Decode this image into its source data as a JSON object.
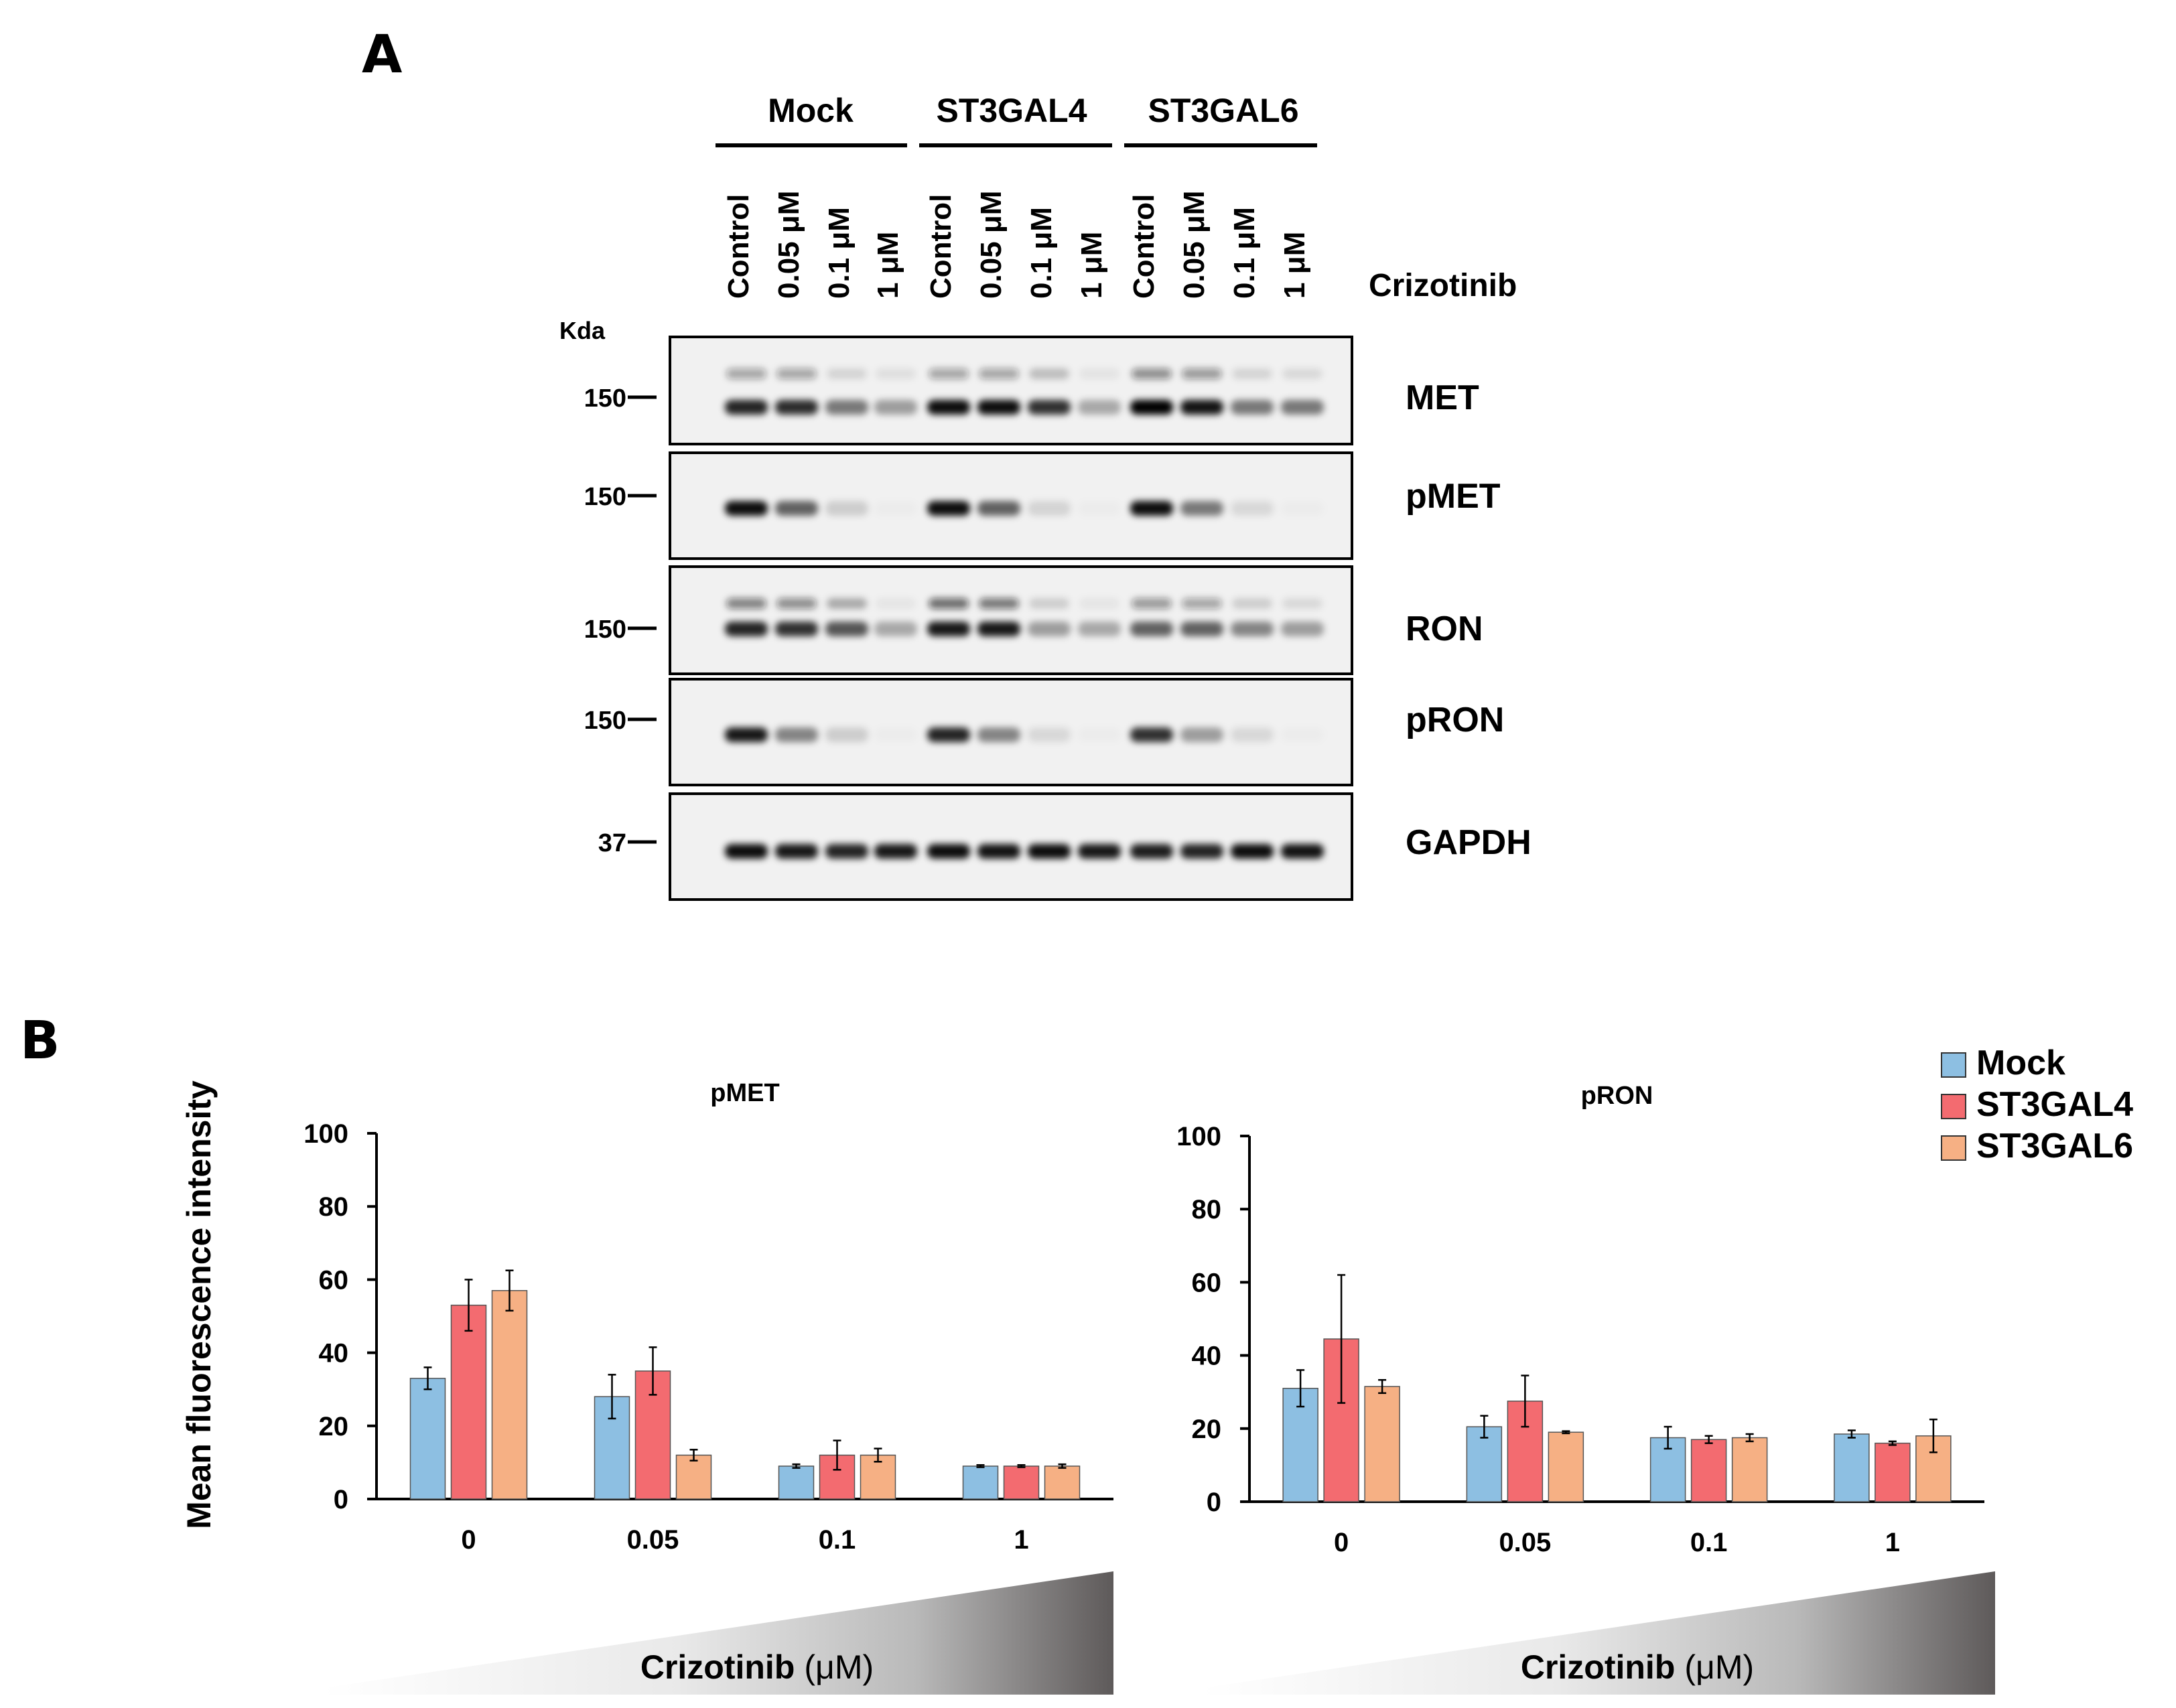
{
  "panel_a": {
    "letter": "A",
    "groups": [
      "Mock",
      "ST3GAL4",
      "ST3GAL6"
    ],
    "lanes": [
      "Control",
      "0.05 μM",
      "0.1 μM",
      "1 μM",
      "Control",
      "0.05 μM",
      "0.1 μM",
      "1 μM",
      "Control",
      "0.05 μM",
      "0.1 μM",
      "1 μM"
    ],
    "treatment_label": "Crizotinib",
    "kda_label": "Kda",
    "blots": [
      {
        "name": "MET",
        "marker": "150",
        "upper_band": [
          0.35,
          0.35,
          0.12,
          0.08,
          0.35,
          0.35,
          0.22,
          0.06,
          0.45,
          0.4,
          0.12,
          0.1
        ],
        "lower_band": [
          0.85,
          0.82,
          0.5,
          0.35,
          0.95,
          0.95,
          0.8,
          0.3,
          1.0,
          0.92,
          0.5,
          0.5
        ]
      },
      {
        "name": "pMET",
        "marker": "150",
        "upper_band": [
          0,
          0,
          0,
          0,
          0,
          0,
          0,
          0,
          0,
          0,
          0,
          0
        ],
        "lower_band": [
          0.95,
          0.6,
          0.15,
          0.02,
          0.95,
          0.6,
          0.12,
          0.02,
          0.95,
          0.5,
          0.1,
          0.02
        ]
      },
      {
        "name": "RON",
        "marker": "150",
        "upper_band": [
          0.5,
          0.45,
          0.3,
          0.05,
          0.6,
          0.55,
          0.15,
          0.05,
          0.4,
          0.35,
          0.15,
          0.1
        ],
        "lower_band": [
          0.85,
          0.8,
          0.65,
          0.3,
          0.9,
          0.9,
          0.35,
          0.3,
          0.6,
          0.6,
          0.45,
          0.35
        ]
      },
      {
        "name": "pRON",
        "marker": "150",
        "upper_band": [
          0,
          0,
          0,
          0,
          0,
          0,
          0,
          0,
          0,
          0,
          0,
          0
        ],
        "lower_band": [
          0.9,
          0.45,
          0.15,
          0.02,
          0.85,
          0.45,
          0.1,
          0.02,
          0.8,
          0.35,
          0.1,
          0.02
        ]
      },
      {
        "name": "GAPDH",
        "marker": "37",
        "upper_band": [
          0,
          0,
          0,
          0,
          0,
          0,
          0,
          0,
          0,
          0,
          0,
          0
        ],
        "lower_band": [
          0.95,
          0.9,
          0.85,
          0.9,
          0.95,
          0.92,
          0.95,
          0.9,
          0.88,
          0.85,
          0.95,
          0.92
        ]
      }
    ]
  },
  "panel_b": {
    "letter": "B",
    "gradient_label_main": "Crizotinib",
    "gradient_label_unit": "(μM)"
  },
  "legend": [
    {
      "name": "Mock",
      "color": "#8dbfe2"
    },
    {
      "name": "ST3GAL4",
      "color": "#f36b70"
    },
    {
      "name": "ST3GAL6",
      "color": "#f6b084"
    }
  ],
  "chart_data": [
    {
      "type": "bar",
      "title": "pMET",
      "ylabel": "Mean fluorescence intensity",
      "xlabel": "Crizotinib (μM)",
      "ylim": [
        0,
        100
      ],
      "yticks": [
        0,
        20,
        40,
        60,
        80,
        100
      ],
      "categories": [
        "0",
        "0.05",
        "0.1",
        "1"
      ],
      "series": [
        {
          "name": "Mock",
          "values": [
            33,
            28,
            9,
            9
          ],
          "errors": [
            3,
            6,
            0.5,
            0.3
          ]
        },
        {
          "name": "ST3GAL4",
          "values": [
            53,
            35,
            12,
            9
          ],
          "errors": [
            7,
            6.5,
            4,
            0.3
          ]
        },
        {
          "name": "ST3GAL6",
          "values": [
            57,
            12,
            12,
            9
          ],
          "errors": [
            5.5,
            1.5,
            1.8,
            0.5
          ]
        }
      ]
    },
    {
      "type": "bar",
      "title": "pRON",
      "ylabel": "",
      "xlabel": "Crizotinib (μM)",
      "ylim": [
        0,
        100
      ],
      "yticks": [
        0,
        20,
        40,
        60,
        80,
        100
      ],
      "categories": [
        "0",
        "0.05",
        "0.1",
        "1"
      ],
      "series": [
        {
          "name": "Mock",
          "values": [
            31,
            20.5,
            17.5,
            18.5
          ],
          "errors": [
            5,
            3,
            3,
            1
          ]
        },
        {
          "name": "ST3GAL4",
          "values": [
            44.5,
            27.5,
            17,
            16
          ],
          "errors": [
            17.5,
            7,
            1,
            0.5
          ]
        },
        {
          "name": "ST3GAL6",
          "values": [
            31.5,
            19,
            17.5,
            18
          ],
          "errors": [
            1.8,
            0.3,
            1,
            4.5
          ]
        }
      ]
    }
  ]
}
